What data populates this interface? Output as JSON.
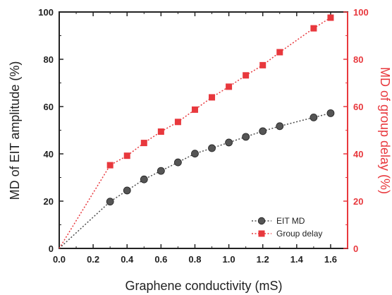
{
  "chart_data": {
    "type": "line",
    "xlabel": "Graphene conductivity (mS)",
    "ylabel_left": "MD of EIT amplitude (%)",
    "ylabel_right": "MD of group delay (%)",
    "xlim": [
      0.0,
      1.7
    ],
    "ylim_left": [
      0,
      100
    ],
    "ylim_right": [
      0,
      100
    ],
    "x_ticks": [
      "0.0",
      "0.2",
      "0.4",
      "0.6",
      "0.8",
      "1.0",
      "1.2",
      "1.4",
      "1.6"
    ],
    "y_ticks_left": [
      "0",
      "20",
      "40",
      "60",
      "80",
      "100"
    ],
    "y_ticks_right": [
      "0",
      "20",
      "40",
      "60",
      "80",
      "100"
    ],
    "grid": false,
    "legend_position": "bottom-right",
    "series": [
      {
        "name": "EIT MD",
        "axis": "left",
        "color": "#4d4d4d",
        "marker": "circle",
        "line_style": "dotted",
        "x": [
          0.0,
          0.3,
          0.4,
          0.5,
          0.6,
          0.7,
          0.8,
          0.9,
          1.0,
          1.1,
          1.2,
          1.3,
          1.5,
          1.6
        ],
        "values": [
          0.0,
          19.8,
          24.5,
          29.2,
          32.8,
          36.4,
          40.1,
          42.4,
          44.8,
          47.2,
          49.6,
          51.7,
          55.4,
          57.2
        ]
      },
      {
        "name": "Group delay",
        "axis": "right",
        "color": "#e8383d",
        "marker": "square",
        "line_style": "dotted",
        "x": [
          0.0,
          0.3,
          0.4,
          0.5,
          0.6,
          0.7,
          0.8,
          0.9,
          1.0,
          1.1,
          1.2,
          1.3,
          1.5,
          1.6
        ],
        "values": [
          0.0,
          35.2,
          39.2,
          44.6,
          49.4,
          53.5,
          58.7,
          63.9,
          68.4,
          73.2,
          77.5,
          83.0,
          93.1,
          97.6
        ]
      }
    ]
  }
}
